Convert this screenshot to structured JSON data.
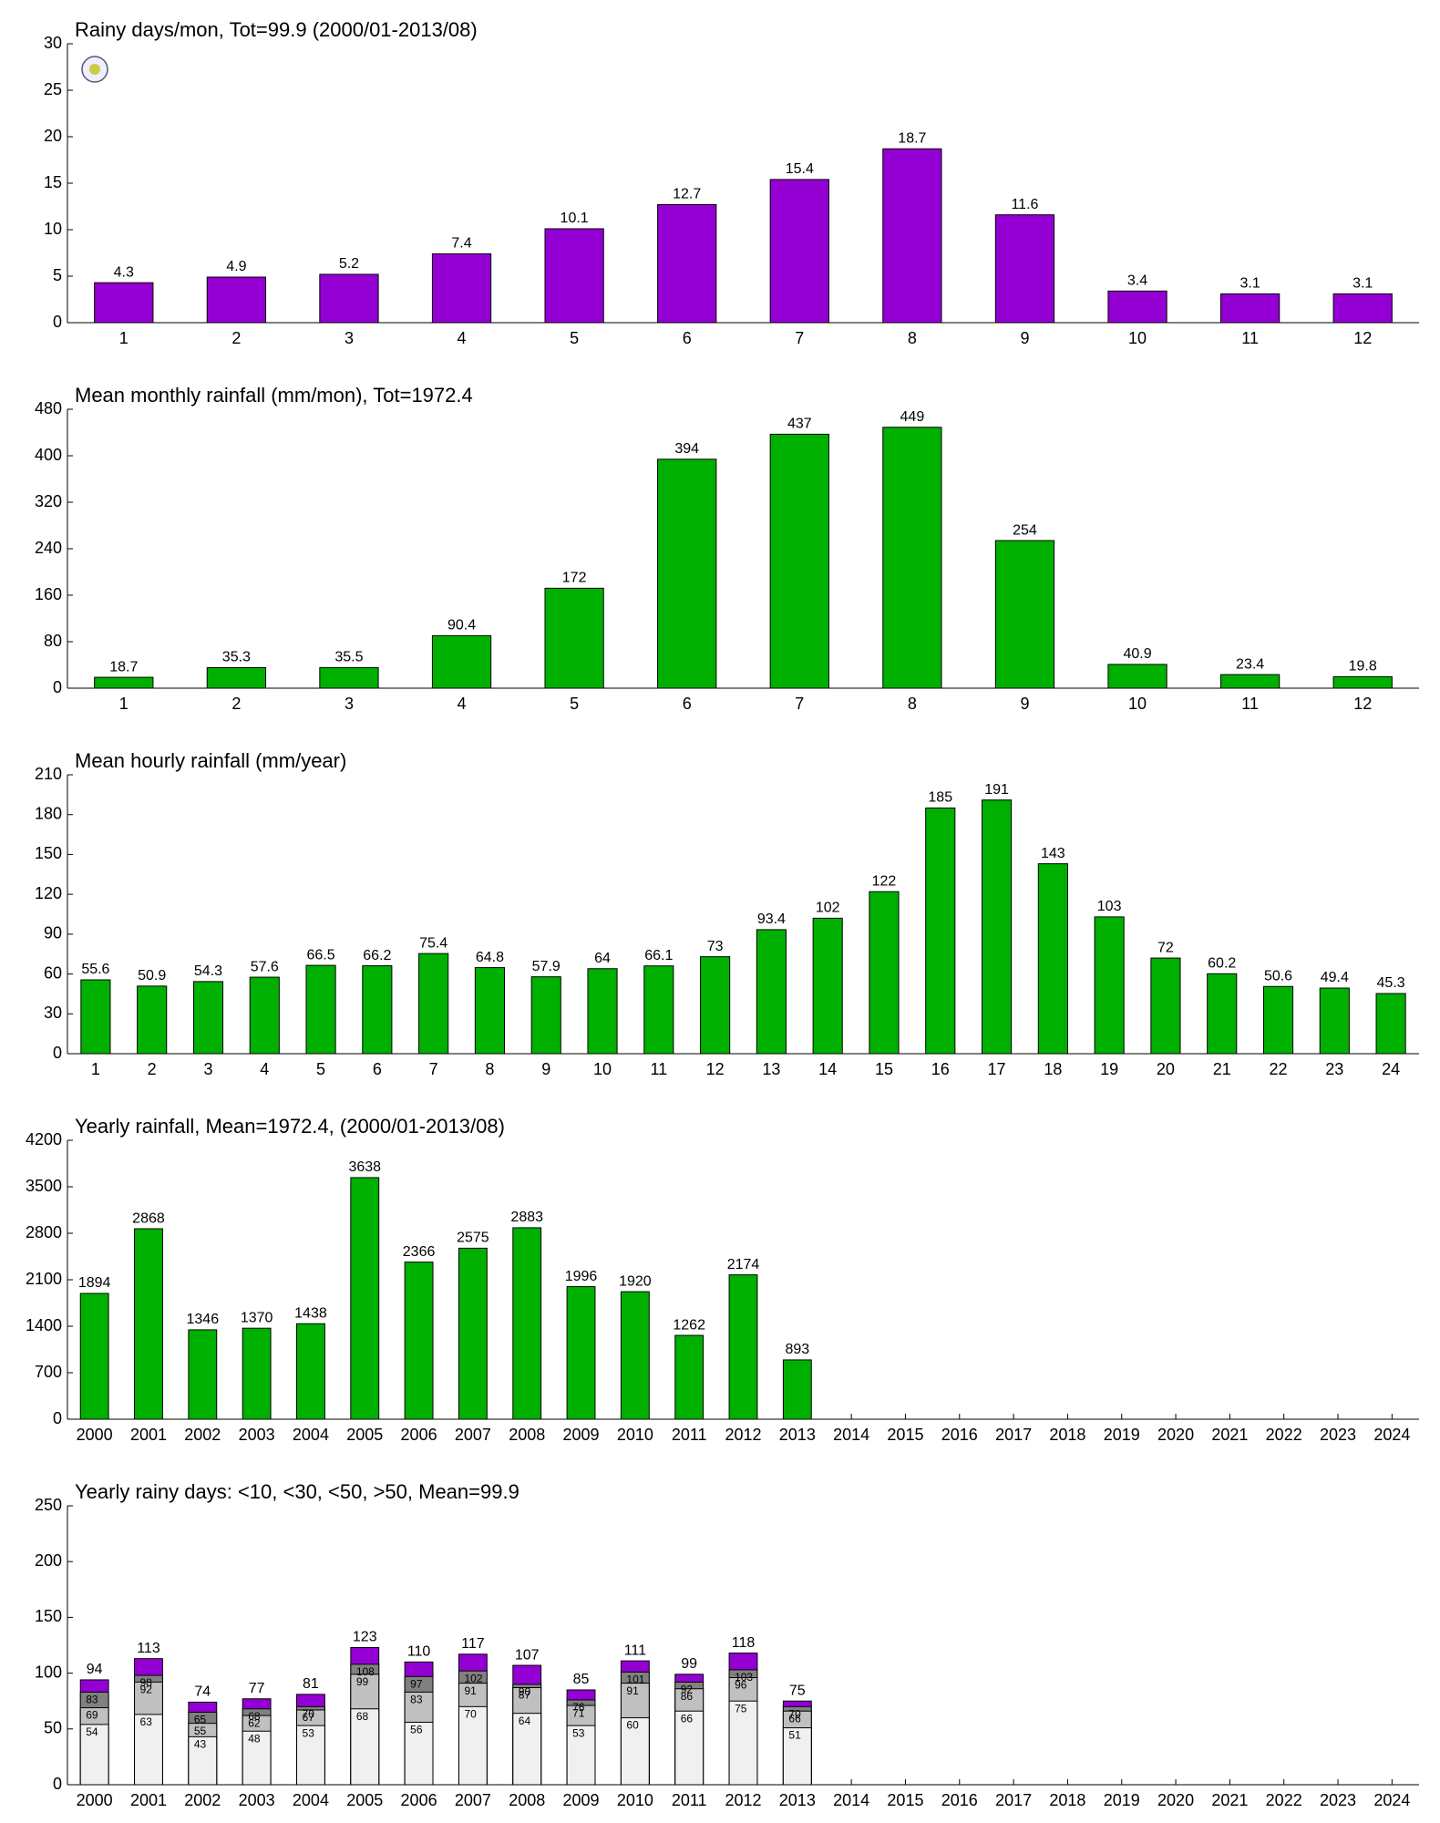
{
  "chart_data": [
    {
      "type": "bar",
      "title": "Rainy days/mon, Tot=99.9 (2000/01-2013/08)",
      "categories": [
        "1",
        "2",
        "3",
        "4",
        "5",
        "6",
        "7",
        "8",
        "9",
        "10",
        "11",
        "12"
      ],
      "values": [
        4.3,
        4.9,
        5.2,
        7.4,
        10.1,
        12.7,
        15.4,
        18.7,
        11.6,
        3.4,
        3.1,
        3.1
      ],
      "color": "#9400d3",
      "ylim": [
        0,
        30
      ],
      "yticks": [
        0,
        5,
        10,
        15,
        20,
        25,
        30
      ]
    },
    {
      "type": "bar",
      "title": "Mean monthly rainfall (mm/mon), Tot=1972.4",
      "categories": [
        "1",
        "2",
        "3",
        "4",
        "5",
        "6",
        "7",
        "8",
        "9",
        "10",
        "11",
        "12"
      ],
      "values": [
        18.7,
        35.3,
        35.5,
        90.4,
        172,
        394,
        437,
        449,
        254,
        40.9,
        23.4,
        19.8
      ],
      "color": "#00b000",
      "ylim": [
        0,
        480
      ],
      "yticks": [
        0,
        80,
        160,
        240,
        320,
        400,
        480
      ]
    },
    {
      "type": "bar",
      "title": "Mean hourly rainfall (mm/year)",
      "categories": [
        "1",
        "2",
        "3",
        "4",
        "5",
        "6",
        "7",
        "8",
        "9",
        "10",
        "11",
        "12",
        "13",
        "14",
        "15",
        "16",
        "17",
        "18",
        "19",
        "20",
        "21",
        "22",
        "23",
        "24"
      ],
      "values": [
        55.6,
        50.9,
        54.3,
        57.6,
        66.5,
        66.2,
        75.4,
        64.8,
        57.9,
        64,
        66.1,
        73,
        93.4,
        102,
        122,
        185,
        191,
        143,
        103,
        72,
        60.2,
        50.6,
        49.4,
        45.3
      ],
      "color": "#00b000",
      "ylim": [
        0,
        210
      ],
      "yticks": [
        0,
        30,
        60,
        90,
        120,
        150,
        180,
        210
      ]
    },
    {
      "type": "bar",
      "title": "Yearly rainfall, Mean=1972.4, (2000/01-2013/08)",
      "categories": [
        "2000",
        "2001",
        "2002",
        "2003",
        "2004",
        "2005",
        "2006",
        "2007",
        "2008",
        "2009",
        "2010",
        "2011",
        "2012",
        "2013",
        "2014",
        "2015",
        "2016",
        "2017",
        "2018",
        "2019",
        "2020",
        "2021",
        "2022",
        "2023",
        "2024"
      ],
      "values": [
        1894,
        2868,
        1346,
        1370,
        1438,
        3638,
        2366,
        2575,
        2883,
        1996,
        1920,
        1262,
        2174,
        893,
        null,
        null,
        null,
        null,
        null,
        null,
        null,
        null,
        null,
        null,
        null
      ],
      "color": "#00b000",
      "ylim": [
        0,
        4200
      ],
      "yticks": [
        0,
        700,
        1400,
        2100,
        2800,
        3500,
        4200
      ]
    },
    {
      "type": "bar",
      "title": "Yearly rainy days: <10, <30, <50, >50, Mean=99.9",
      "categories": [
        "2000",
        "2001",
        "2002",
        "2003",
        "2004",
        "2005",
        "2006",
        "2007",
        "2008",
        "2009",
        "2010",
        "2011",
        "2012",
        "2013",
        "2014",
        "2015",
        "2016",
        "2017",
        "2018",
        "2019",
        "2020",
        "2021",
        "2022",
        "2023",
        "2024"
      ],
      "series": [
        {
          "color": "#9400d3",
          "values": [
            94,
            113,
            74,
            77,
            81,
            123,
            110,
            117,
            107,
            85,
            111,
            99,
            118,
            75,
            null,
            null,
            null,
            null,
            null,
            null,
            null,
            null,
            null,
            null,
            null
          ]
        },
        {
          "color": "#808080",
          "values": [
            83,
            98,
            65,
            68,
            70,
            108,
            97,
            102,
            90,
            76,
            101,
            92,
            103,
            70,
            null,
            null,
            null,
            null,
            null,
            null,
            null,
            null,
            null,
            null,
            null
          ]
        },
        {
          "color": "#c0c0c0",
          "values": [
            69,
            92,
            55,
            62,
            67,
            99,
            83,
            91,
            87,
            71,
            91,
            86,
            96,
            66,
            null,
            null,
            null,
            null,
            null,
            null,
            null,
            null,
            null,
            null,
            null
          ]
        },
        {
          "color": "#f0f0f0",
          "values": [
            54,
            63,
            43,
            48,
            53,
            68,
            56,
            70,
            64,
            53,
            60,
            66,
            75,
            51,
            null,
            null,
            null,
            null,
            null,
            null,
            null,
            null,
            null,
            null,
            null
          ]
        }
      ],
      "ylim": [
        0,
        250
      ],
      "yticks": [
        0,
        50,
        100,
        150,
        200,
        250
      ]
    }
  ]
}
